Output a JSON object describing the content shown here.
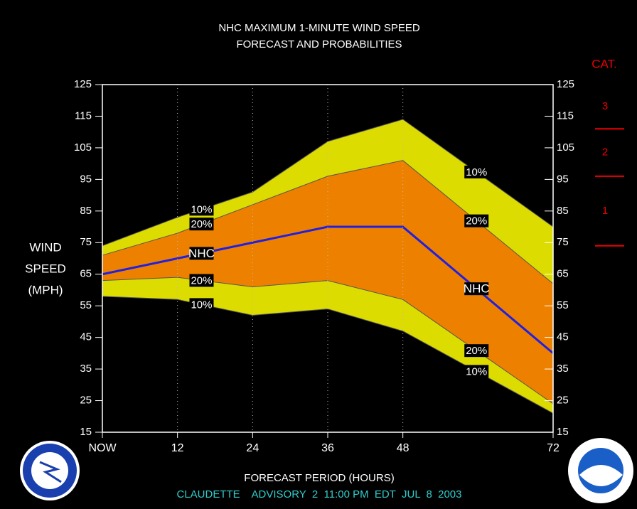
{
  "chart_data": {
    "type": "line",
    "title": [
      "NHC MAXIMUM 1-MINUTE WIND SPEED",
      "FORECAST AND PROBABILITIES"
    ],
    "ylabel": [
      "WIND",
      "SPEED",
      "(MPH)"
    ],
    "xlabel": "FORECAST PERIOD (HOURS)",
    "footer": "CLAUDETTE    ADVISORY  2  11:00 PM  EDT  JUL  8  2003",
    "x": [
      0,
      12,
      24,
      36,
      48,
      72
    ],
    "xlim": [
      0,
      72
    ],
    "xticks": [
      {
        "value": 0,
        "label": "NOW"
      },
      12,
      24,
      36,
      48,
      72
    ],
    "ylim": [
      15,
      125
    ],
    "yticks": [
      15,
      25,
      35,
      45,
      55,
      65,
      75,
      85,
      95,
      105,
      115,
      125
    ],
    "y2lim": [
      15,
      125
    ],
    "y2ticks": [
      15,
      25,
      35,
      45,
      55,
      65,
      75,
      85,
      95,
      105,
      115,
      125
    ],
    "grid": true,
    "series": [
      {
        "name": "10%",
        "color": "#dcdc00",
        "values": [
          74,
          83,
          91,
          107,
          114,
          80
        ]
      },
      {
        "name": "20%",
        "color": "#ee8000",
        "values": [
          71,
          78,
          87,
          96,
          101,
          62
        ]
      },
      {
        "name": "NHC",
        "color": "#2020e0",
        "values": [
          65,
          70,
          75,
          80,
          80,
          40
        ]
      },
      {
        "name": "20%",
        "color": "#ee8000",
        "values": [
          63,
          64,
          61,
          63,
          57,
          24
        ]
      },
      {
        "name": "10%",
        "color": "#dcdc00",
        "values": [
          58,
          57,
          52,
          54,
          47,
          21
        ]
      }
    ],
    "category_scale": {
      "title": "CAT.",
      "color": "#ee0000",
      "labels": [
        "1",
        "2",
        "3"
      ],
      "thresholds": [
        74,
        96,
        111
      ]
    }
  }
}
